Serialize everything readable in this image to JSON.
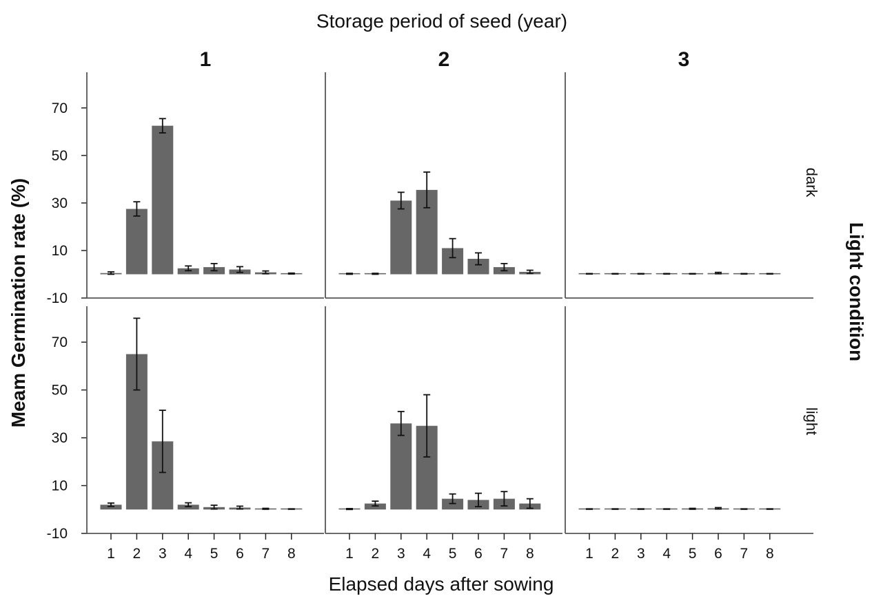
{
  "chart_data": {
    "type": "bar",
    "title": "Storage period of seed (year)",
    "xlabel": "Elapsed days after sowing",
    "ylabel": "Meam Germination rate (%)",
    "row_facet_label": "Light condition",
    "column_facets": [
      "1",
      "2",
      "3"
    ],
    "row_facets": [
      "dark",
      "light"
    ],
    "categories": [
      "1",
      "2",
      "3",
      "4",
      "5",
      "6",
      "7",
      "8"
    ],
    "ylim": [
      -10,
      85
    ],
    "yticks": [
      "-10",
      "10",
      "30",
      "50",
      "70"
    ],
    "bar_color": "#676767",
    "panels": [
      {
        "column": "1",
        "row": "dark",
        "values": [
          0.5,
          27.5,
          62.5,
          2.5,
          3.0,
          2.0,
          0.8,
          0.3
        ],
        "errors": [
          0.5,
          3.0,
          3.0,
          1.0,
          1.5,
          1.2,
          0.6,
          0.2
        ]
      },
      {
        "column": "2",
        "row": "dark",
        "values": [
          0.2,
          0.2,
          31.0,
          35.5,
          11.0,
          6.5,
          3.0,
          1.0
        ],
        "errors": [
          0.2,
          0.2,
          3.5,
          7.5,
          4.0,
          2.5,
          1.5,
          0.7
        ]
      },
      {
        "column": "3",
        "row": "dark",
        "values": [
          0.2,
          0.2,
          0.2,
          0.2,
          0.2,
          0.5,
          0.2,
          0.2
        ],
        "errors": [
          0.1,
          0.1,
          0.1,
          0.1,
          0.1,
          0.3,
          0.1,
          0.1
        ]
      },
      {
        "column": "1",
        "row": "light",
        "values": [
          2.0,
          65.0,
          28.5,
          2.0,
          1.0,
          0.8,
          0.3,
          0.2
        ],
        "errors": [
          0.7,
          15.0,
          13.0,
          0.8,
          0.8,
          0.6,
          0.2,
          0.1
        ]
      },
      {
        "column": "2",
        "row": "light",
        "values": [
          0.2,
          2.5,
          36.0,
          35.0,
          4.5,
          4.0,
          4.5,
          2.5
        ],
        "errors": [
          0.2,
          1.0,
          5.0,
          13.0,
          2.0,
          2.8,
          3.0,
          2.0
        ]
      },
      {
        "column": "3",
        "row": "light",
        "values": [
          0.2,
          0.2,
          0.2,
          0.2,
          0.3,
          0.5,
          0.2,
          0.2
        ],
        "errors": [
          0.1,
          0.1,
          0.1,
          0.1,
          0.2,
          0.3,
          0.1,
          0.1
        ]
      }
    ]
  }
}
